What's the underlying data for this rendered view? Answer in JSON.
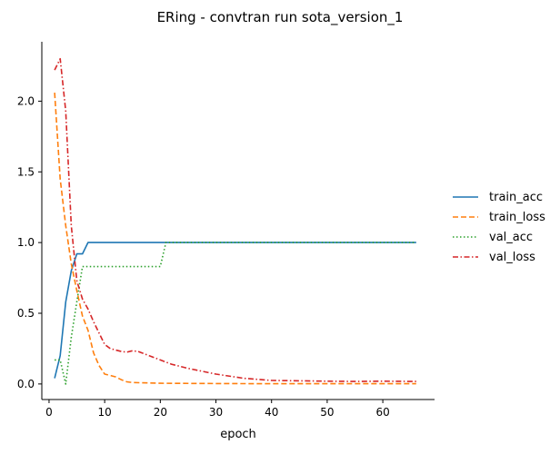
{
  "chart_data": {
    "type": "line",
    "title": "ERing - convtran run sota_version_1",
    "xlabel": "epoch",
    "ylabel": "",
    "xlim": [
      -1.3,
      69.3
    ],
    "ylim": [
      -0.11,
      2.42
    ],
    "xticks": [
      0,
      10,
      20,
      30,
      40,
      50,
      60
    ],
    "yticks": [
      0.0,
      0.5,
      1.0,
      1.5,
      2.0
    ],
    "ytick_labels": [
      "0.0",
      "0.5",
      "1.0",
      "1.5",
      "2.0"
    ],
    "grid": false,
    "legend": "right-outside",
    "series": [
      {
        "name": "train_acc",
        "color": "#1f77b4",
        "dash": "solid",
        "x": [
          1,
          2,
          3,
          4,
          5,
          6,
          7,
          8,
          10,
          15,
          20,
          30,
          40,
          50,
          60,
          66
        ],
        "y": [
          0.04,
          0.2,
          0.58,
          0.8,
          0.92,
          0.92,
          1.0,
          1.0,
          1.0,
          1.0,
          1.0,
          1.0,
          1.0,
          1.0,
          1.0,
          1.0
        ]
      },
      {
        "name": "train_loss",
        "color": "#ff7f0e",
        "dash": "dashed",
        "x": [
          1,
          2,
          3,
          4,
          5,
          6,
          7,
          8,
          9,
          10,
          11,
          12,
          13,
          14,
          15,
          20,
          30,
          40,
          50,
          60,
          66
        ],
        "y": [
          2.06,
          1.45,
          1.12,
          0.85,
          0.66,
          0.48,
          0.38,
          0.22,
          0.13,
          0.07,
          0.06,
          0.05,
          0.03,
          0.015,
          0.01,
          0.005,
          0.003,
          0.002,
          0.002,
          0.002,
          0.002
        ]
      },
      {
        "name": "val_acc",
        "color": "#2ca02c",
        "dash": "dotted",
        "x": [
          1,
          2,
          3,
          4,
          5,
          6,
          7,
          10,
          15,
          20,
          21,
          22,
          30,
          40,
          50,
          60,
          66
        ],
        "y": [
          0.17,
          0.17,
          0.0,
          0.33,
          0.58,
          0.83,
          0.83,
          0.83,
          0.83,
          0.83,
          1.0,
          1.0,
          1.0,
          1.0,
          1.0,
          1.0,
          1.0
        ]
      },
      {
        "name": "val_loss",
        "color": "#d62728",
        "dash": "dashdot",
        "x": [
          1,
          2,
          3,
          4,
          5,
          6,
          7,
          8,
          9,
          10,
          11,
          12,
          13,
          14,
          15,
          16,
          18,
          20,
          22,
          25,
          30,
          35,
          40,
          45,
          50,
          55,
          60,
          66
        ],
        "y": [
          2.22,
          2.3,
          1.93,
          1.12,
          0.73,
          0.6,
          0.53,
          0.44,
          0.36,
          0.28,
          0.25,
          0.24,
          0.23,
          0.225,
          0.235,
          0.23,
          0.2,
          0.17,
          0.14,
          0.11,
          0.07,
          0.04,
          0.025,
          0.022,
          0.02,
          0.018,
          0.02,
          0.018
        ]
      }
    ]
  }
}
